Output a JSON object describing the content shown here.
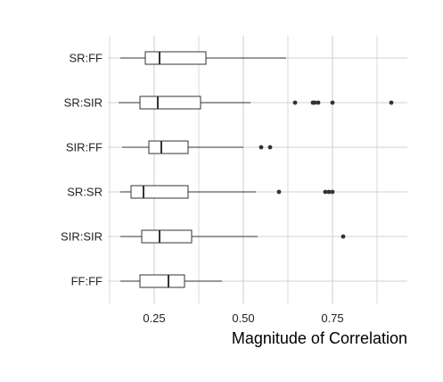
{
  "chart_data": {
    "type": "boxplot",
    "orientation": "horizontal",
    "title": "",
    "xlabel": "Magnitude of Correlation",
    "ylabel": "",
    "xlim": [
      0.12,
      0.96
    ],
    "x_ticks": [
      0.25,
      0.5,
      0.75
    ],
    "x_tick_labels": [
      "0.25",
      "0.50",
      "0.75"
    ],
    "grid": true,
    "categories": [
      "SR:FF",
      "SR:SIR",
      "SIR:FF",
      "SR:SR",
      "SIR:SIR",
      "FF:FF"
    ],
    "boxes": [
      {
        "category": "SR:FF",
        "whisker_low": 0.155,
        "q1": 0.225,
        "median": 0.265,
        "q3": 0.395,
        "whisker_high": 0.62,
        "outliers": []
      },
      {
        "category": "SR:SIR",
        "whisker_low": 0.15,
        "q1": 0.21,
        "median": 0.26,
        "q3": 0.38,
        "whisker_high": 0.52,
        "outliers": [
          0.645,
          0.695,
          0.7,
          0.71,
          0.75,
          0.915
        ]
      },
      {
        "category": "SIR:FF",
        "whisker_low": 0.16,
        "q1": 0.235,
        "median": 0.27,
        "q3": 0.345,
        "whisker_high": 0.5,
        "outliers": [
          0.55,
          0.575
        ]
      },
      {
        "category": "SR:SR",
        "whisker_low": 0.155,
        "q1": 0.185,
        "median": 0.22,
        "q3": 0.345,
        "whisker_high": 0.535,
        "outliers": [
          0.6,
          0.73,
          0.74,
          0.75
        ]
      },
      {
        "category": "SIR:SIR",
        "whisker_low": 0.155,
        "q1": 0.215,
        "median": 0.265,
        "q3": 0.355,
        "whisker_high": 0.54,
        "outliers": [
          0.78
        ]
      },
      {
        "category": "FF:FF",
        "whisker_low": 0.155,
        "q1": 0.21,
        "median": 0.29,
        "q3": 0.335,
        "whisker_high": 0.44,
        "outliers": []
      }
    ],
    "colors": {
      "box_fill": "#ffffff",
      "box_stroke": "#333333",
      "grid": "#d0d0d0",
      "outlier": "#333333"
    }
  }
}
